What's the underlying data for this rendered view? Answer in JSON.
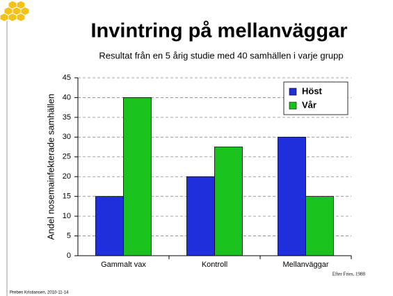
{
  "chart_data": {
    "type": "bar",
    "title": "Invintring på mellanväggar",
    "subtitle": "Resultat från en 5 årig studie med 40 samhällen i varje grupp",
    "y_label": "Andel nosemainfekterade samhällen",
    "categories": [
      "Gammalt vax",
      "Kontroll",
      "Mellanväggar"
    ],
    "series": [
      {
        "name": "Höst",
        "color": "#1f2fdc",
        "values": [
          15,
          20,
          30
        ]
      },
      {
        "name": "Vår",
        "color": "#19c21c",
        "values": [
          40,
          27.5,
          15
        ]
      }
    ],
    "ylim": [
      0,
      45
    ],
    "yticks": [
      0,
      5,
      10,
      15,
      20,
      25,
      30,
      35,
      40,
      45
    ],
    "grid": true,
    "legend": "upper right",
    "annotation": "Efter Fries, 1988",
    "footer": "Preben Kristiansen, 2010-11-14"
  }
}
